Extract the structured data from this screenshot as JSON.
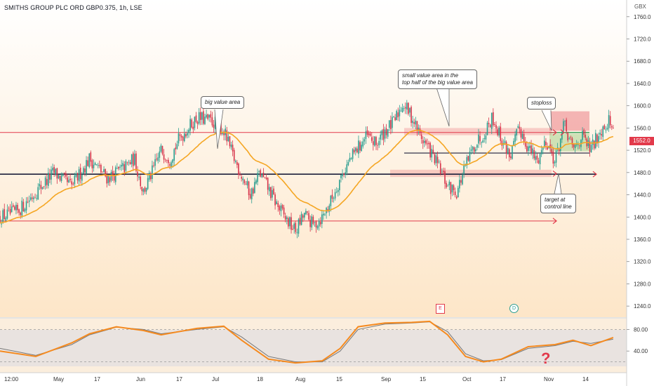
{
  "header": {
    "title": "SMITHS GROUP PLC ORD GBP0.375, 1h, LSE",
    "currency": "GBX",
    "last_price": "1552.0"
  },
  "annotations": {
    "big_value_area": "big value area",
    "small_value_area_line1": "small value area in the",
    "small_value_area_line2": "top half of the big value area",
    "stoploss": "stoploss",
    "target_line1": "target at",
    "target_line2": "control line",
    "earnings_badge": "E",
    "dividend_badge": "D",
    "question_mark": "?"
  },
  "colors": {
    "level_red": "#e23a4b",
    "control_line": "#1c1f3b",
    "ema": "#f5a623",
    "oscillator_k": "#f58a1f",
    "oscillator_d": "#787878",
    "candle_up": "#2a9d8f",
    "candle_down": "#d6334a",
    "bg_top": "#ffffff",
    "bg_bottom": "#fde6c8"
  },
  "chart_data": {
    "type": "candlestick",
    "symbol": "SMITHS GROUP PLC ORD GBP0.375",
    "timeframe": "1h",
    "exchange": "LSE",
    "y_unit": "GBX",
    "ylim": [
      1220,
      1790
    ],
    "yticks": [
      1240,
      1280,
      1320,
      1360,
      1400,
      1440,
      1480,
      1520,
      1560,
      1600,
      1640,
      1680,
      1720,
      1760
    ],
    "ytick_labels": [
      "1240.0",
      "1280.0",
      "1320.0",
      "1360.0",
      "1400.0",
      "1440.0",
      "1480.0",
      "1520.0",
      "1560.0",
      "1600.0",
      "1640.0",
      "1680.0",
      "1720.0",
      "1760.0"
    ],
    "xlabels": [
      "12:00",
      "May",
      "17",
      "Jun",
      "17",
      "Jul",
      "18",
      "Aug",
      "15",
      "Sep",
      "15",
      "Oct",
      "17",
      "Nov",
      "14"
    ],
    "price_path": [
      [
        0,
        1400
      ],
      [
        4,
        1410
      ],
      [
        8,
        1445
      ],
      [
        12,
        1480
      ],
      [
        16,
        1455
      ],
      [
        20,
        1505
      ],
      [
        24,
        1470
      ],
      [
        28,
        1490
      ],
      [
        30,
        1505
      ],
      [
        32,
        1445
      ],
      [
        34,
        1480
      ],
      [
        36,
        1520
      ],
      [
        38,
        1505
      ],
      [
        40,
        1540
      ],
      [
        42,
        1560
      ],
      [
        44,
        1578
      ],
      [
        46,
        1575
      ],
      [
        48,
        1570
      ],
      [
        50,
        1555
      ],
      [
        52,
        1510
      ],
      [
        54,
        1475
      ],
      [
        56,
        1440
      ],
      [
        58,
        1480
      ],
      [
        60,
        1450
      ],
      [
        62,
        1420
      ],
      [
        64,
        1395
      ],
      [
        66,
        1375
      ],
      [
        68,
        1405
      ],
      [
        70,
        1385
      ],
      [
        72,
        1400
      ],
      [
        74,
        1430
      ],
      [
        76,
        1470
      ],
      [
        78,
        1500
      ],
      [
        80,
        1525
      ],
      [
        82,
        1545
      ],
      [
        84,
        1530
      ],
      [
        86,
        1555
      ],
      [
        88,
        1570
      ],
      [
        90,
        1605
      ],
      [
        92,
        1580
      ],
      [
        94,
        1545
      ],
      [
        96,
        1520
      ],
      [
        98,
        1490
      ],
      [
        100,
        1455
      ],
      [
        102,
        1445
      ],
      [
        104,
        1490
      ],
      [
        106,
        1530
      ],
      [
        108,
        1550
      ],
      [
        110,
        1580
      ],
      [
        112,
        1540
      ],
      [
        114,
        1510
      ],
      [
        116,
        1560
      ],
      [
        118,
        1525
      ],
      [
        120,
        1500
      ],
      [
        122,
        1540
      ],
      [
        124,
        1500
      ],
      [
        126,
        1565
      ],
      [
        128,
        1520
      ],
      [
        130,
        1545
      ],
      [
        132,
        1520
      ],
      [
        134,
        1555
      ],
      [
        136,
        1575
      ],
      [
        137,
        1555
      ]
    ],
    "levels": [
      {
        "name": "big value area top",
        "y": 1552,
        "color": "red"
      },
      {
        "name": "big value area bottom",
        "y": 1393,
        "color": "red"
      },
      {
        "name": "control line",
        "y": 1477,
        "color": "navy"
      },
      {
        "name": "small value area control line",
        "y": 1515,
        "color": "navy"
      }
    ],
    "zones": [
      {
        "name": "small value area top band",
        "y": [
          1547,
          1560
        ]
      },
      {
        "name": "small value area bottom band",
        "y": [
          1472,
          1485
        ]
      },
      {
        "name": "stoploss zone",
        "y": [
          1555,
          1590
        ]
      },
      {
        "name": "target zone",
        "y": [
          1518,
          1550
        ]
      }
    ],
    "oscillator": {
      "ylim": [
        0,
        100
      ],
      "yticks": [
        40,
        80
      ],
      "ytick_labels": [
        "40.00",
        "80.00"
      ],
      "band": [
        20,
        80
      ],
      "k_path": [
        [
          0,
          40
        ],
        [
          8,
          30
        ],
        [
          16,
          55
        ],
        [
          20,
          72
        ],
        [
          26,
          85
        ],
        [
          32,
          78
        ],
        [
          36,
          70
        ],
        [
          44,
          82
        ],
        [
          50,
          86
        ],
        [
          54,
          60
        ],
        [
          60,
          25
        ],
        [
          66,
          18
        ],
        [
          72,
          22
        ],
        [
          76,
          45
        ],
        [
          80,
          85
        ],
        [
          86,
          92
        ],
        [
          92,
          93
        ],
        [
          96,
          95
        ],
        [
          100,
          70
        ],
        [
          104,
          30
        ],
        [
          108,
          20
        ],
        [
          112,
          25
        ],
        [
          118,
          48
        ],
        [
          124,
          52
        ],
        [
          128,
          60
        ],
        [
          132,
          50
        ],
        [
          137,
          65
        ]
      ],
      "d_path": [
        [
          0,
          45
        ],
        [
          8,
          32
        ],
        [
          16,
          52
        ],
        [
          20,
          70
        ],
        [
          26,
          84
        ],
        [
          32,
          80
        ],
        [
          36,
          72
        ],
        [
          44,
          80
        ],
        [
          50,
          85
        ],
        [
          54,
          66
        ],
        [
          60,
          30
        ],
        [
          66,
          20
        ],
        [
          72,
          20
        ],
        [
          76,
          40
        ],
        [
          80,
          80
        ],
        [
          86,
          90
        ],
        [
          92,
          92
        ],
        [
          96,
          94
        ],
        [
          100,
          76
        ],
        [
          104,
          35
        ],
        [
          108,
          22
        ],
        [
          112,
          24
        ],
        [
          118,
          45
        ],
        [
          124,
          50
        ],
        [
          128,
          58
        ],
        [
          132,
          54
        ],
        [
          137,
          62
        ]
      ]
    }
  }
}
